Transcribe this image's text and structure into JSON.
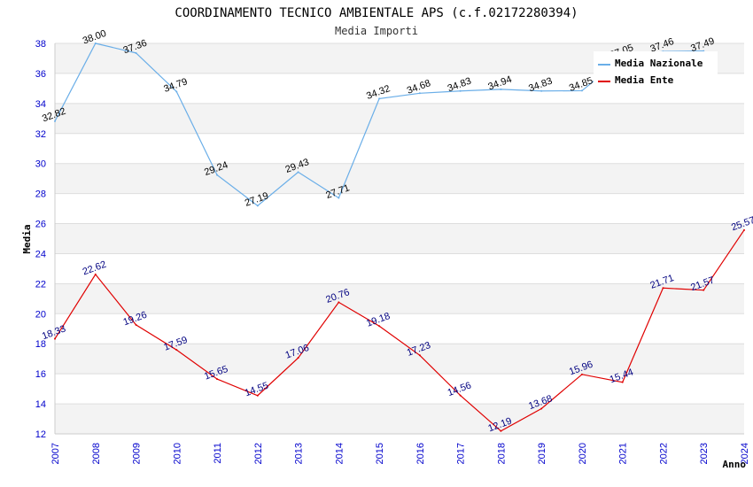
{
  "chart_data": {
    "type": "line",
    "title": "COORDINAMENTO TECNICO AMBIENTALE APS (c.f.02172280394)",
    "subtitle": "Media Importi",
    "xlabel": "Anno",
    "ylabel": "Media",
    "ylim": [
      12,
      38
    ],
    "yticks": [
      "12",
      "14",
      "16",
      "18",
      "20",
      "22",
      "24",
      "26",
      "28",
      "30",
      "32",
      "34",
      "36",
      "38"
    ],
    "x": [
      "2007",
      "2008",
      "2009",
      "2010",
      "2011",
      "2012",
      "2013",
      "2014",
      "2015",
      "2016",
      "2017",
      "2018",
      "2019",
      "2020",
      "2021",
      "2022",
      "2023",
      "2024"
    ],
    "grid": true,
    "legend_position": "top-right",
    "series": [
      {
        "name": "Media Nazionale",
        "color": "#6aaee8",
        "label_color": "#000000",
        "values": [
          32.82,
          38.0,
          37.36,
          34.79,
          29.24,
          27.19,
          29.43,
          27.71,
          34.32,
          34.68,
          34.83,
          34.94,
          34.83,
          34.85,
          37.05,
          37.46,
          37.49,
          null
        ],
        "labels": [
          "32.82",
          "38.00",
          "37.36",
          "34.79",
          "29.24",
          "27.19",
          "29.43",
          "27.71",
          "34.32",
          "34.68",
          "34.83",
          "34.94",
          "34.83",
          "34.85",
          "37.05",
          "37.46",
          "37.49",
          ""
        ]
      },
      {
        "name": "Media Ente",
        "color": "#e00000",
        "label_color": "#000080",
        "values": [
          18.33,
          22.62,
          19.26,
          17.59,
          15.65,
          14.55,
          17.06,
          20.76,
          19.18,
          17.23,
          14.56,
          12.19,
          13.68,
          15.96,
          15.44,
          21.71,
          21.57,
          25.57
        ],
        "labels": [
          "18.33",
          "22.62",
          "19.26",
          "17.59",
          "15.65",
          "14.55",
          "17.06",
          "20.76",
          "19.18",
          "17.23",
          "14.56",
          "12.19",
          "13.68",
          "15.96",
          "15.44",
          "21.71",
          "21.57",
          "25.57"
        ]
      }
    ]
  }
}
